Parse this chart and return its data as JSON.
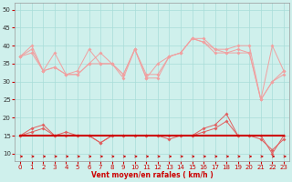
{
  "x": [
    0,
    1,
    2,
    3,
    4,
    5,
    6,
    7,
    8,
    9,
    10,
    11,
    12,
    13,
    14,
    15,
    16,
    17,
    18,
    19,
    20,
    21,
    22,
    23
  ],
  "line1": [
    37,
    40,
    33,
    38,
    32,
    33,
    39,
    35,
    35,
    32,
    39,
    32,
    32,
    37,
    38,
    42,
    41,
    38,
    38,
    39,
    38,
    25,
    30,
    33
  ],
  "line2": [
    37,
    39,
    33,
    34,
    32,
    32,
    35,
    38,
    35,
    32,
    39,
    31,
    35,
    37,
    38,
    42,
    42,
    39,
    39,
    40,
    40,
    25,
    40,
    33
  ],
  "line3": [
    37,
    38,
    33,
    34,
    32,
    32,
    35,
    35,
    35,
    31,
    39,
    31,
    31,
    37,
    38,
    42,
    41,
    39,
    38,
    38,
    38,
    25,
    30,
    32
  ],
  "line4_wind": [
    15,
    17,
    18,
    15,
    16,
    15,
    15,
    13,
    15,
    15,
    15,
    15,
    15,
    15,
    15,
    15,
    17,
    18,
    21,
    15,
    15,
    15,
    10,
    15
  ],
  "line5_mean": [
    15,
    16,
    17,
    15,
    15,
    15,
    15,
    13,
    15,
    15,
    15,
    15,
    15,
    14,
    15,
    15,
    16,
    17,
    19,
    15,
    15,
    14,
    11,
    14
  ],
  "line6_flat": [
    15,
    15,
    15,
    15,
    15,
    15,
    15,
    15,
    15,
    15,
    15,
    15,
    15,
    15,
    15,
    15,
    15,
    15,
    15,
    15,
    15,
    15,
    15,
    15
  ],
  "bg_color": "#cff0ec",
  "grid_color": "#a8ddd8",
  "line_color_light": "#f0a0a0",
  "line_color_mid": "#e06060",
  "line_color_dark": "#cc0000",
  "xlabel": "Vent moyen/en rafales ( km/h )",
  "ylim": [
    8,
    52
  ],
  "xlim": [
    -0.5,
    23.5
  ],
  "yticks": [
    10,
    15,
    20,
    25,
    30,
    35,
    40,
    45,
    50
  ],
  "xticks": [
    0,
    1,
    2,
    3,
    4,
    5,
    6,
    7,
    8,
    9,
    10,
    11,
    12,
    13,
    14,
    15,
    16,
    17,
    18,
    19,
    20,
    21,
    22,
    23
  ]
}
